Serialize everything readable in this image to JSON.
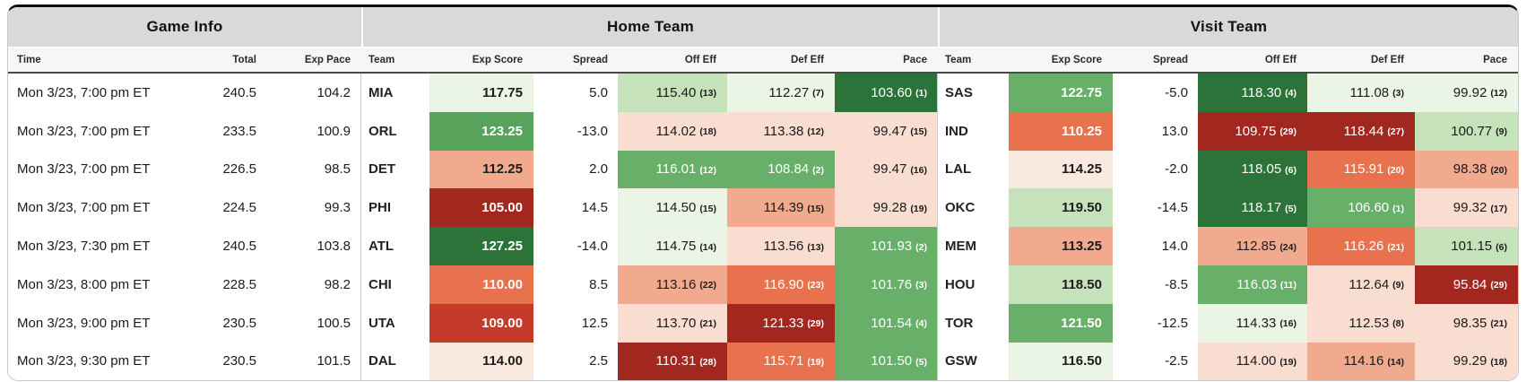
{
  "table": {
    "groups": {
      "game_info": "Game Info",
      "home": "Home Team",
      "visit": "Visit Team"
    },
    "game_columns": {
      "time": "Time",
      "total": "Total",
      "exp_pace": "Exp Pace"
    },
    "team_columns": {
      "team": "Team",
      "exp_score": "Exp Score",
      "spread": "Spread",
      "off_eff": "Off Eff",
      "def_eff": "Def Eff",
      "pace": "Pace"
    },
    "palette": {
      "g1": "#ebf5e6",
      "g2": "#c6e2ba",
      "g4": "#68b069",
      "g4d": "#57a35c",
      "g5": "#2b7339",
      "p0": "#f9e9de",
      "p1": "#f8ddd0",
      "p2": "#f2aa8e",
      "p3": "#e8714e",
      "p4": "#c53a28",
      "p5": "#a2271f"
    },
    "white_text_keys": [
      "g4",
      "g4d",
      "g5",
      "p3",
      "p4",
      "p5"
    ],
    "rows": [
      {
        "time": "Mon 3/23, 7:00 pm ET",
        "total": "240.5",
        "exp_pace": "104.2",
        "home": {
          "team": "MIA",
          "exp_score": {
            "v": "117.75",
            "bg": "g1"
          },
          "spread": "5.0",
          "off_eff": {
            "v": "115.40",
            "rank": "13",
            "bg": "g2"
          },
          "def_eff": {
            "v": "112.27",
            "rank": "7",
            "bg": "g1"
          },
          "pace": {
            "v": "103.60",
            "rank": "1",
            "bg": "g5"
          }
        },
        "visit": {
          "team": "SAS",
          "exp_score": {
            "v": "122.75",
            "bg": "g4"
          },
          "spread": "-5.0",
          "off_eff": {
            "v": "118.30",
            "rank": "4",
            "bg": "g5"
          },
          "def_eff": {
            "v": "111.08",
            "rank": "3",
            "bg": "g1"
          },
          "pace": {
            "v": "99.92",
            "rank": "12",
            "bg": "g1"
          }
        }
      },
      {
        "time": "Mon 3/23, 7:00 pm ET",
        "total": "233.5",
        "exp_pace": "100.9",
        "home": {
          "team": "ORL",
          "exp_score": {
            "v": "123.25",
            "bg": "g4d"
          },
          "spread": "-13.0",
          "off_eff": {
            "v": "114.02",
            "rank": "18",
            "bg": "p1"
          },
          "def_eff": {
            "v": "113.38",
            "rank": "12",
            "bg": "p1"
          },
          "pace": {
            "v": "99.47",
            "rank": "15",
            "bg": "p1"
          }
        },
        "visit": {
          "team": "IND",
          "exp_score": {
            "v": "110.25",
            "bg": "p3"
          },
          "spread": "13.0",
          "off_eff": {
            "v": "109.75",
            "rank": "29",
            "bg": "p5"
          },
          "def_eff": {
            "v": "118.44",
            "rank": "27",
            "bg": "p5"
          },
          "pace": {
            "v": "100.77",
            "rank": "9",
            "bg": "g2"
          }
        }
      },
      {
        "time": "Mon 3/23, 7:00 pm ET",
        "total": "226.5",
        "exp_pace": "98.5",
        "home": {
          "team": "DET",
          "exp_score": {
            "v": "112.25",
            "bg": "p2"
          },
          "spread": "2.0",
          "off_eff": {
            "v": "116.01",
            "rank": "12",
            "bg": "g4"
          },
          "def_eff": {
            "v": "108.84",
            "rank": "2",
            "bg": "g4"
          },
          "pace": {
            "v": "99.47",
            "rank": "16",
            "bg": "p1"
          }
        },
        "visit": {
          "team": "LAL",
          "exp_score": {
            "v": "114.25",
            "bg": "p0"
          },
          "spread": "-2.0",
          "off_eff": {
            "v": "118.05",
            "rank": "6",
            "bg": "g5"
          },
          "def_eff": {
            "v": "115.91",
            "rank": "20",
            "bg": "p3"
          },
          "pace": {
            "v": "98.38",
            "rank": "20",
            "bg": "p2"
          }
        }
      },
      {
        "time": "Mon 3/23, 7:00 pm ET",
        "total": "224.5",
        "exp_pace": "99.3",
        "home": {
          "team": "PHI",
          "exp_score": {
            "v": "105.00",
            "bg": "p5"
          },
          "spread": "14.5",
          "off_eff": {
            "v": "114.50",
            "rank": "15",
            "bg": "g1"
          },
          "def_eff": {
            "v": "114.39",
            "rank": "15",
            "bg": "p2"
          },
          "pace": {
            "v": "99.28",
            "rank": "19",
            "bg": "p1"
          }
        },
        "visit": {
          "team": "OKC",
          "exp_score": {
            "v": "119.50",
            "bg": "g2"
          },
          "spread": "-14.5",
          "off_eff": {
            "v": "118.17",
            "rank": "5",
            "bg": "g5"
          },
          "def_eff": {
            "v": "106.60",
            "rank": "1",
            "bg": "g4"
          },
          "pace": {
            "v": "99.32",
            "rank": "17",
            "bg": "p1"
          }
        }
      },
      {
        "time": "Mon 3/23, 7:30 pm ET",
        "total": "240.5",
        "exp_pace": "103.8",
        "home": {
          "team": "ATL",
          "exp_score": {
            "v": "127.25",
            "bg": "g5"
          },
          "spread": "-14.0",
          "off_eff": {
            "v": "114.75",
            "rank": "14",
            "bg": "g1"
          },
          "def_eff": {
            "v": "113.56",
            "rank": "13",
            "bg": "p1"
          },
          "pace": {
            "v": "101.93",
            "rank": "2",
            "bg": "g4"
          }
        },
        "visit": {
          "team": "MEM",
          "exp_score": {
            "v": "113.25",
            "bg": "p2"
          },
          "spread": "14.0",
          "off_eff": {
            "v": "112.85",
            "rank": "24",
            "bg": "p2"
          },
          "def_eff": {
            "v": "116.26",
            "rank": "21",
            "bg": "p3"
          },
          "pace": {
            "v": "101.15",
            "rank": "6",
            "bg": "g2"
          }
        }
      },
      {
        "time": "Mon 3/23, 8:00 pm ET",
        "total": "228.5",
        "exp_pace": "98.2",
        "home": {
          "team": "CHI",
          "exp_score": {
            "v": "110.00",
            "bg": "p3"
          },
          "spread": "8.5",
          "off_eff": {
            "v": "113.16",
            "rank": "22",
            "bg": "p2"
          },
          "def_eff": {
            "v": "116.90",
            "rank": "23",
            "bg": "p3"
          },
          "pace": {
            "v": "101.76",
            "rank": "3",
            "bg": "g4"
          }
        },
        "visit": {
          "team": "HOU",
          "exp_score": {
            "v": "118.50",
            "bg": "g2"
          },
          "spread": "-8.5",
          "off_eff": {
            "v": "116.03",
            "rank": "11",
            "bg": "g4"
          },
          "def_eff": {
            "v": "112.64",
            "rank": "9",
            "bg": "p1"
          },
          "pace": {
            "v": "95.84",
            "rank": "29",
            "bg": "p5"
          }
        }
      },
      {
        "time": "Mon 3/23, 9:00 pm ET",
        "total": "230.5",
        "exp_pace": "100.5",
        "home": {
          "team": "UTA",
          "exp_score": {
            "v": "109.00",
            "bg": "p4"
          },
          "spread": "12.5",
          "off_eff": {
            "v": "113.70",
            "rank": "21",
            "bg": "p1"
          },
          "def_eff": {
            "v": "121.33",
            "rank": "29",
            "bg": "p5"
          },
          "pace": {
            "v": "101.54",
            "rank": "4",
            "bg": "g4"
          }
        },
        "visit": {
          "team": "TOR",
          "exp_score": {
            "v": "121.50",
            "bg": "g4"
          },
          "spread": "-12.5",
          "off_eff": {
            "v": "114.33",
            "rank": "16",
            "bg": "g1"
          },
          "def_eff": {
            "v": "112.53",
            "rank": "8",
            "bg": "p1"
          },
          "pace": {
            "v": "98.35",
            "rank": "21",
            "bg": "p1"
          }
        }
      },
      {
        "time": "Mon 3/23, 9:30 pm ET",
        "total": "230.5",
        "exp_pace": "101.5",
        "home": {
          "team": "DAL",
          "exp_score": {
            "v": "114.00",
            "bg": "p0"
          },
          "spread": "2.5",
          "off_eff": {
            "v": "110.31",
            "rank": "28",
            "bg": "p5"
          },
          "def_eff": {
            "v": "115.71",
            "rank": "19",
            "bg": "p3"
          },
          "pace": {
            "v": "101.50",
            "rank": "5",
            "bg": "g4"
          }
        },
        "visit": {
          "team": "GSW",
          "exp_score": {
            "v": "116.50",
            "bg": "g1"
          },
          "spread": "-2.5",
          "off_eff": {
            "v": "114.00",
            "rank": "19",
            "bg": "p1"
          },
          "def_eff": {
            "v": "114.16",
            "rank": "14",
            "bg": "p2"
          },
          "pace": {
            "v": "99.29",
            "rank": "18",
            "bg": "p1"
          }
        }
      }
    ]
  }
}
